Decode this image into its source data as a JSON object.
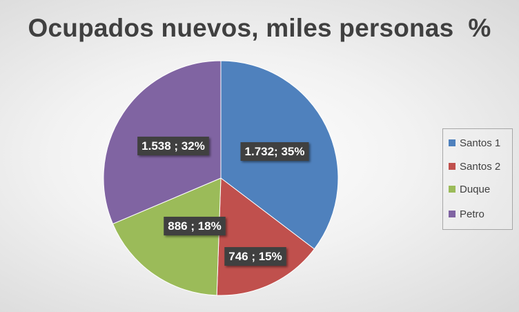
{
  "chart_data": {
    "type": "pie",
    "title": "Ocupados nuevos, miles personas  %",
    "categories": [
      "Santos 1",
      "Santos 2",
      "Duque",
      "Petro"
    ],
    "values": [
      1732,
      746,
      886,
      1538
    ],
    "value_labels": [
      "1.732; 35%",
      "746 ; 15%",
      "886 ; 18%",
      "1.538 ; 32%"
    ],
    "percentages": [
      35,
      15,
      18,
      32
    ],
    "colors": [
      "#4f81bd",
      "#c0504d",
      "#9bbb59",
      "#8064a2"
    ],
    "legend_position": "right"
  }
}
